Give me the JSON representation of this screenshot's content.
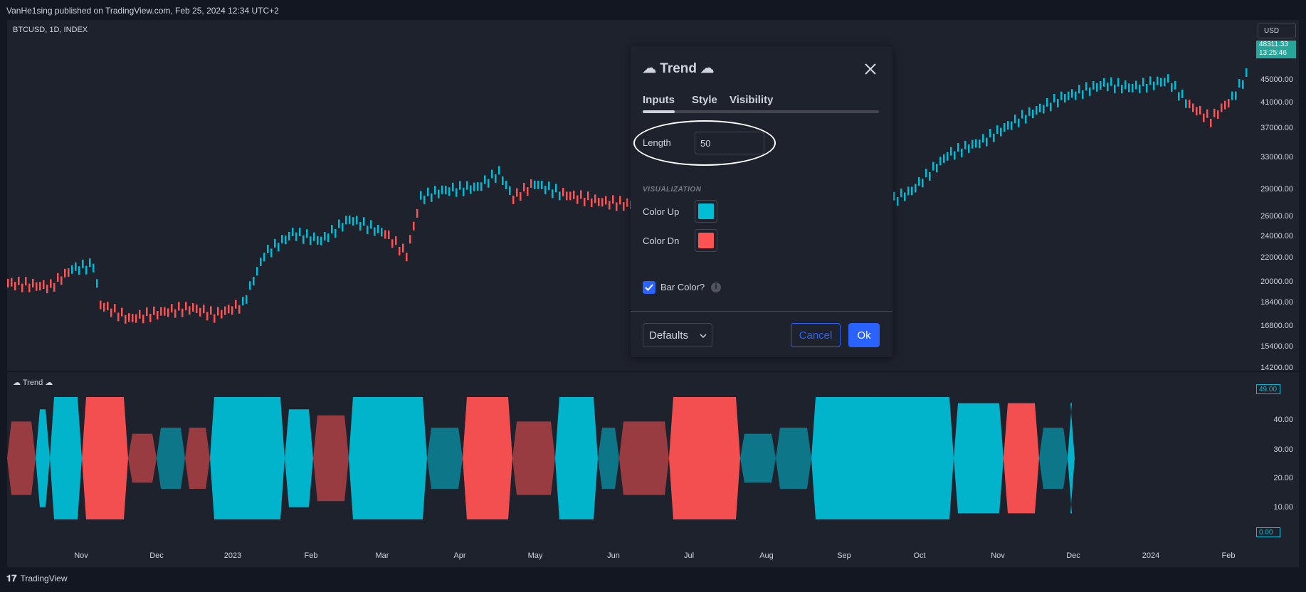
{
  "header": {
    "publisher": "VanHe1sing published on TradingView.com, Feb 25, 2024 12:34 UTC+2"
  },
  "chart": {
    "symbol": "BTCUSD, 1D, INDEX",
    "currency": "USD",
    "indicator_title": "☁ Trend ☁",
    "price_axis": [
      "45000.00",
      "41000.00",
      "37000.00",
      "33000.00",
      "29000.00",
      "26000.00",
      "24000.00",
      "22000.00",
      "20000.00",
      "18400.00",
      "16800.00",
      "15400.00",
      "14200.00"
    ],
    "last_price": "48311.33",
    "countdown": "13:25:46",
    "indicator_axis": [
      "40.00",
      "30.00",
      "20.00",
      "10.00"
    ],
    "indicator_last": "49.00",
    "indicator_zero": "0.00",
    "time_axis": [
      "Nov",
      "Dec",
      "2023",
      "Feb",
      "Mar",
      "Apr",
      "May",
      "Jun",
      "Jul",
      "Aug",
      "Sep",
      "Oct",
      "Nov",
      "Dec",
      "2024",
      "Feb"
    ],
    "colors": {
      "up": "#00bcd4",
      "down": "#ff5252",
      "background": "#1e222d"
    }
  },
  "dialog": {
    "title": "☁ Trend ☁",
    "tabs": [
      "Inputs",
      "Style",
      "Visibility"
    ],
    "active_tab": "Inputs",
    "length_label": "Length",
    "length_value": "50",
    "section_title": "VISUALIZATION",
    "color_up_label": "Color Up",
    "color_up": "#00bcd4",
    "color_dn_label": "Color Dn",
    "color_dn": "#ff5252",
    "bar_color_label": "Bar Color?",
    "bar_color_checked": true,
    "defaults_label": "Defaults",
    "cancel_label": "Cancel",
    "ok_label": "Ok"
  },
  "footer": {
    "brand": "TradingView"
  }
}
